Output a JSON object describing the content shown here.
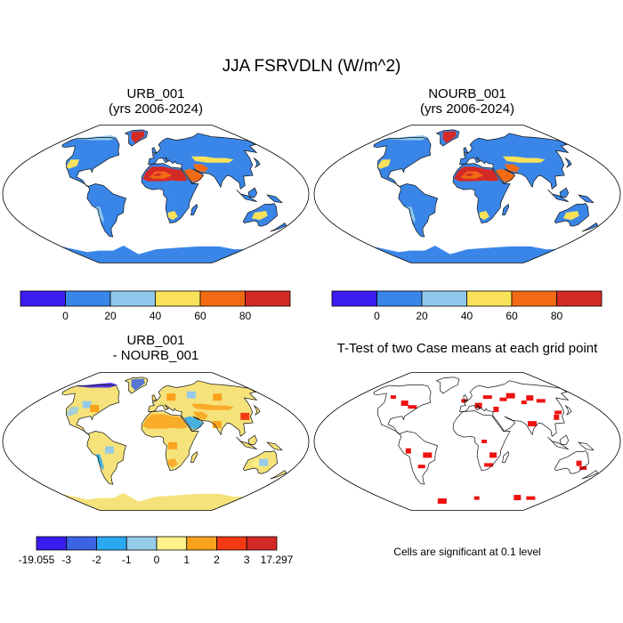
{
  "figure_title": "JJA FSRVDLN (W/m^2)",
  "panels": [
    {
      "id": "urb",
      "title_line1": "URB_001",
      "title_line2": "(yrs 2006-2024)"
    },
    {
      "id": "nourb",
      "title_line1": "NOURB_001",
      "title_line2": "(yrs 2006-2024)"
    },
    {
      "id": "diff",
      "title_line1": "URB_001",
      "title_line2": "- NOURB_001"
    },
    {
      "id": "ttest",
      "title_line1": "T-Test of two Case means at each grid point",
      "title_line2": ""
    }
  ],
  "significance_note": "Cells are significant at 0.1 level",
  "colorbar_main": {
    "tick_labels": [
      "0",
      "20",
      "40",
      "60",
      "80"
    ],
    "colors": [
      "#3a1cf0",
      "#3a86e8",
      "#8fc8ec",
      "#f9e25a",
      "#f26a14",
      "#d42a26"
    ]
  },
  "colorbar_diff": {
    "tick_labels": [
      "-19.055",
      "-3",
      "-2",
      "-1",
      "0",
      "1",
      "2",
      "3",
      "17.297"
    ],
    "colors": [
      "#3a1cf0",
      "#3a64e4",
      "#2aa8f2",
      "#96cbea",
      "#fff28a",
      "#f9a21c",
      "#f33a14",
      "#d42a26"
    ]
  },
  "map_colors": {
    "ocean": "#ffffff",
    "land_base": "#3a86e8",
    "diff_land": "#f6e27a",
    "significant": "#ee1111",
    "coast": "#111111"
  }
}
